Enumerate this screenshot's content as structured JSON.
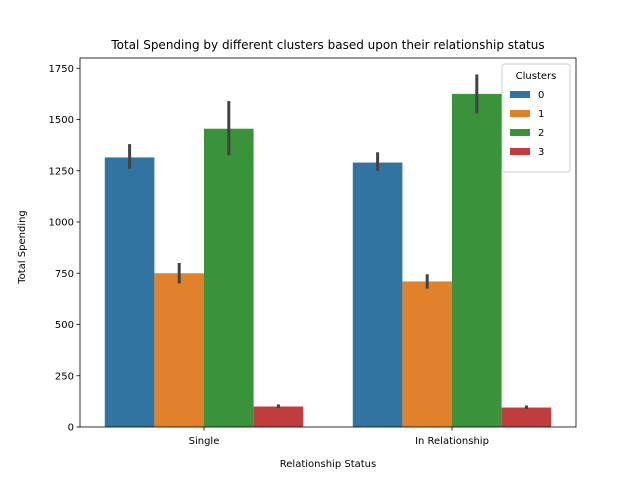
{
  "chart_data": {
    "type": "bar",
    "title": "Total Spending by different clusters based upon their relationship status",
    "xlabel": "Relationship Status",
    "ylabel": "Total Spending",
    "categories": [
      "Single",
      "In Relationship"
    ],
    "ylim": [
      0,
      1800
    ],
    "yticks": [
      0,
      250,
      500,
      750,
      1000,
      1250,
      1500,
      1750
    ],
    "legend_title": "Clusters",
    "legend_position": "top-right",
    "grid": false,
    "series": [
      {
        "name": "0",
        "color": "#3274a1",
        "values": [
          1315,
          1290
        ],
        "ci": [
          [
            1260,
            1380
          ],
          [
            1250,
            1340
          ]
        ]
      },
      {
        "name": "1",
        "color": "#e1812c",
        "values": [
          750,
          710
        ],
        "ci": [
          [
            700,
            800
          ],
          [
            675,
            745
          ]
        ]
      },
      {
        "name": "2",
        "color": "#3a923a",
        "values": [
          1455,
          1625
        ],
        "ci": [
          [
            1325,
            1590
          ],
          [
            1530,
            1720
          ]
        ]
      },
      {
        "name": "3",
        "color": "#c03d3e",
        "values": [
          100,
          95
        ],
        "ci": [
          [
            92,
            110
          ],
          [
            88,
            105
          ]
        ]
      }
    ],
    "errorbar_color": "#424242"
  }
}
